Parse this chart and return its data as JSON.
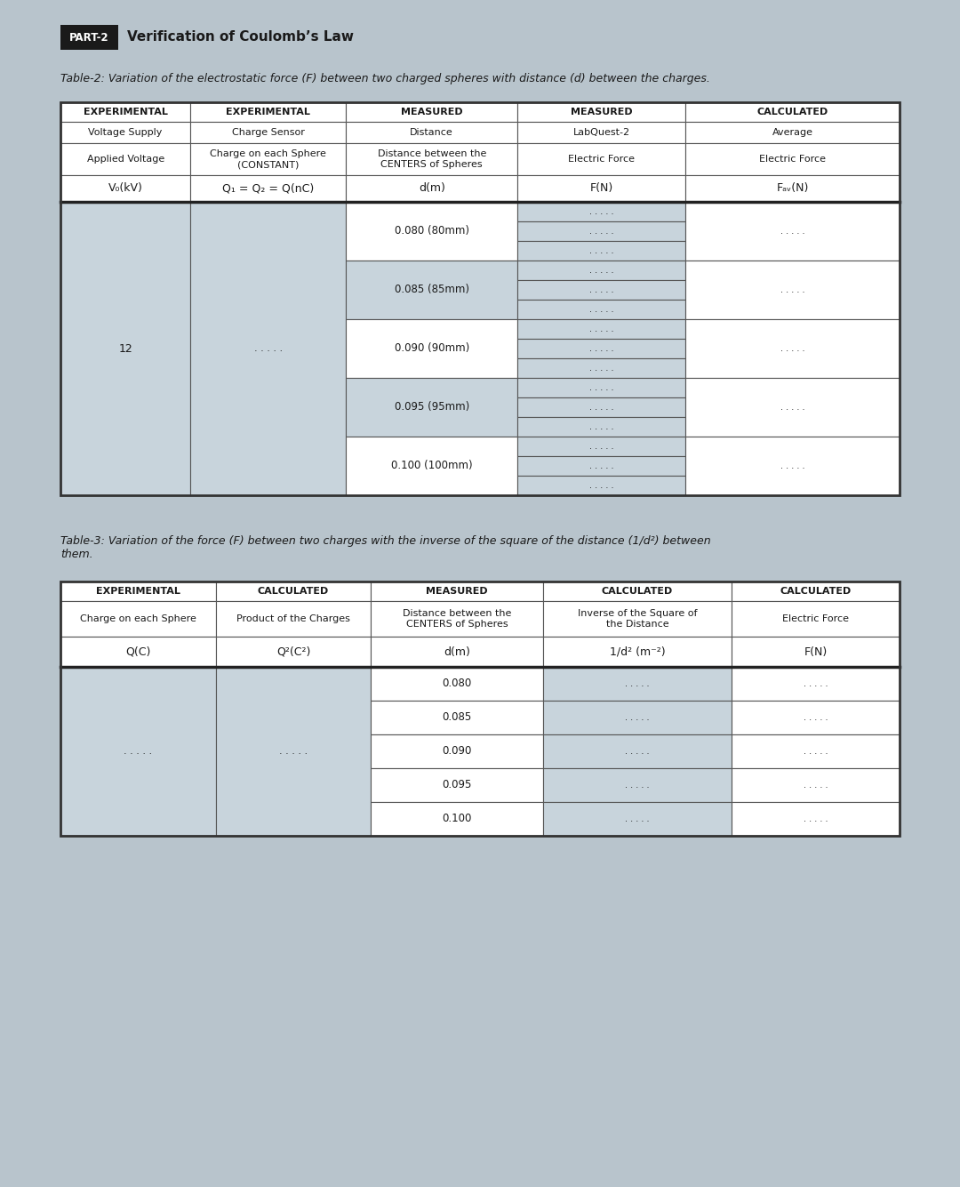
{
  "page_bg": "#b8c4cc",
  "white": "#ffffff",
  "dark_gray": "#1a1a1a",
  "cell_bg_white": "#ffffff",
  "cell_bg_light": "#c8d4dc",
  "cell_bg_medium": "#b8c4cc",
  "part_box_bg": "#1a1a1a",
  "part_box_text": "#ffffff",
  "title_text": "Verification of Coulomb’s Law",
  "part_label": "PART-2",
  "table2_caption": "Table-2: Variation of the electrostatic force (F) between two charged spheres with distance (d) between the charges.",
  "table3_caption": "Table-3: Variation of the force (F) between two charges with the inverse of the square of the distance (1/d²) between\nthem.",
  "table2_col_headers_row1": [
    "EXPERIMENTAL",
    "EXPERIMENTAL",
    "MEASURED",
    "MEASURED",
    "CALCULATED"
  ],
  "table2_col_headers_row2": [
    "Voltage Supply",
    "Charge Sensor",
    "Distance",
    "LabQuest-2",
    "Average"
  ],
  "table2_col_headers_row3": [
    "Applied Voltage",
    "Charge on each Sphere\n(CONSTANT)",
    "Distance between the\nCENTERS of Spheres",
    "Electric Force",
    "Electric Force"
  ],
  "table2_col_headers_row4": [
    "V₀(kV)",
    "Q₁ = Q₂ = Q(nC)",
    "d(m)",
    "F(N)",
    "Fₐᵥ(N)"
  ],
  "table2_distances": [
    "0.080 (80mm)",
    "0.085 (85mm)",
    "0.090 (90mm)",
    "0.095 (95mm)",
    "0.100 (100mm)"
  ],
  "table2_voltage": "12",
  "table3_col_headers_row1": [
    "EXPERIMENTAL",
    "CALCULATED",
    "MEASURED",
    "CALCULATED",
    "CALCULATED"
  ],
  "table3_col_headers_row2": [
    "Charge on each Sphere",
    "Product of the Charges",
    "Distance between the\nCENTERS of Spheres",
    "Inverse of the Square of\nthe Distance",
    "Electric Force"
  ],
  "table3_col_headers_row3": [
    "Q(C)",
    "Q²(C²)",
    "d(m)",
    "1/d² (m⁻²)",
    "F(N)"
  ],
  "table3_distances": [
    "0.080",
    "0.085",
    "0.090",
    "0.095",
    "0.100"
  ],
  "dots": ". . . . ."
}
